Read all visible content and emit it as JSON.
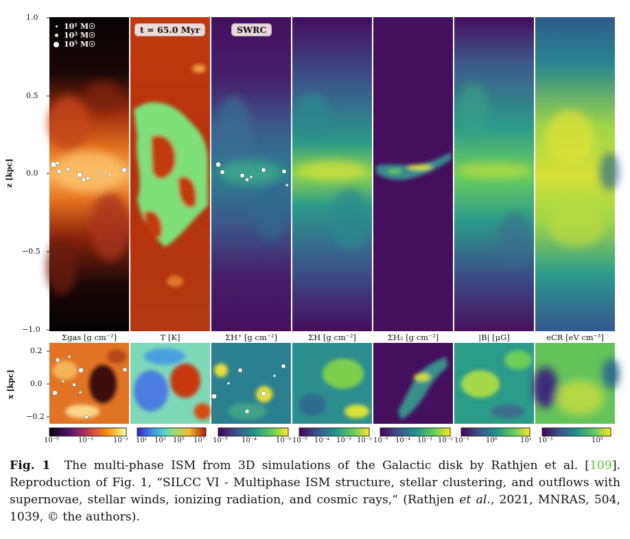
{
  "figure": {
    "legend": [
      "10¹ M☉",
      "10³ M☉",
      "10⁵ M☉"
    ],
    "time_tag": "t = 65.0 Myr",
    "model_tag": "SWRC",
    "z_axis": {
      "title": "z [kpc]",
      "ticks": [
        "1.0",
        "0.5",
        "0.0",
        "−0.5",
        "−1.0"
      ]
    },
    "x_axis": {
      "title": "x [kpc]",
      "ticks": [
        "0.2",
        "0.0",
        "−0.2"
      ]
    },
    "quantities": [
      "Σgas  [g cm⁻²]",
      "T  [K]",
      "ΣH⁺  [g cm⁻²]",
      "ΣH  [g cm⁻²]",
      "ΣH₂  [g cm⁻²]",
      "|B| [μG]",
      "eCR  [eV cm⁻³]"
    ],
    "colorbars": [
      {
        "ticks": [
          "10⁻⁵",
          "10⁻³",
          "10⁻¹"
        ]
      },
      {
        "ticks": [
          "10¹",
          "10³",
          "10⁵",
          "10⁷"
        ]
      },
      {
        "ticks": [
          "10⁻⁵",
          "10⁻⁴",
          "10⁻³"
        ]
      },
      {
        "ticks": [
          "10⁻⁵",
          "10⁻⁴",
          "10⁻³",
          "10⁻²"
        ]
      },
      {
        "ticks": [
          "10⁻⁵",
          "10⁻⁴",
          "10⁻³",
          "10⁻²"
        ]
      },
      {
        "ticks": [
          "10⁻¹",
          "10⁰",
          "10¹"
        ]
      },
      {
        "ticks": [
          "10⁻¹",
          "10⁰"
        ]
      }
    ],
    "colors": {
      "inferno_dark": "#0a0306",
      "inferno_mid": "#e0651a",
      "inferno_light": "#fde2a2",
      "temp_red": "#b82e0c",
      "temp_green": "#7de07a",
      "viridis_dark": "#440e5c",
      "viridis_mid": "#2e8a8c",
      "viridis_light": "#f2e33a"
    }
  },
  "caption": {
    "label": "Fig. 1",
    "text_1": "The multi-phase ISM from 3D simulations of the Galactic disk by Rathjen et al. [",
    "ref": "109",
    "text_2": "]. Reproduction of Fig. 1, “SILCC VI - Multiphase ISM structure, stellar clustering, and outflows with supernovae, stellar winds, ionizing radiation, and cosmic rays,“ (Rathjen ",
    "italic": "et al.",
    "text_3": ", 2021, MNRAS, 504, 1039, © the authors)."
  }
}
